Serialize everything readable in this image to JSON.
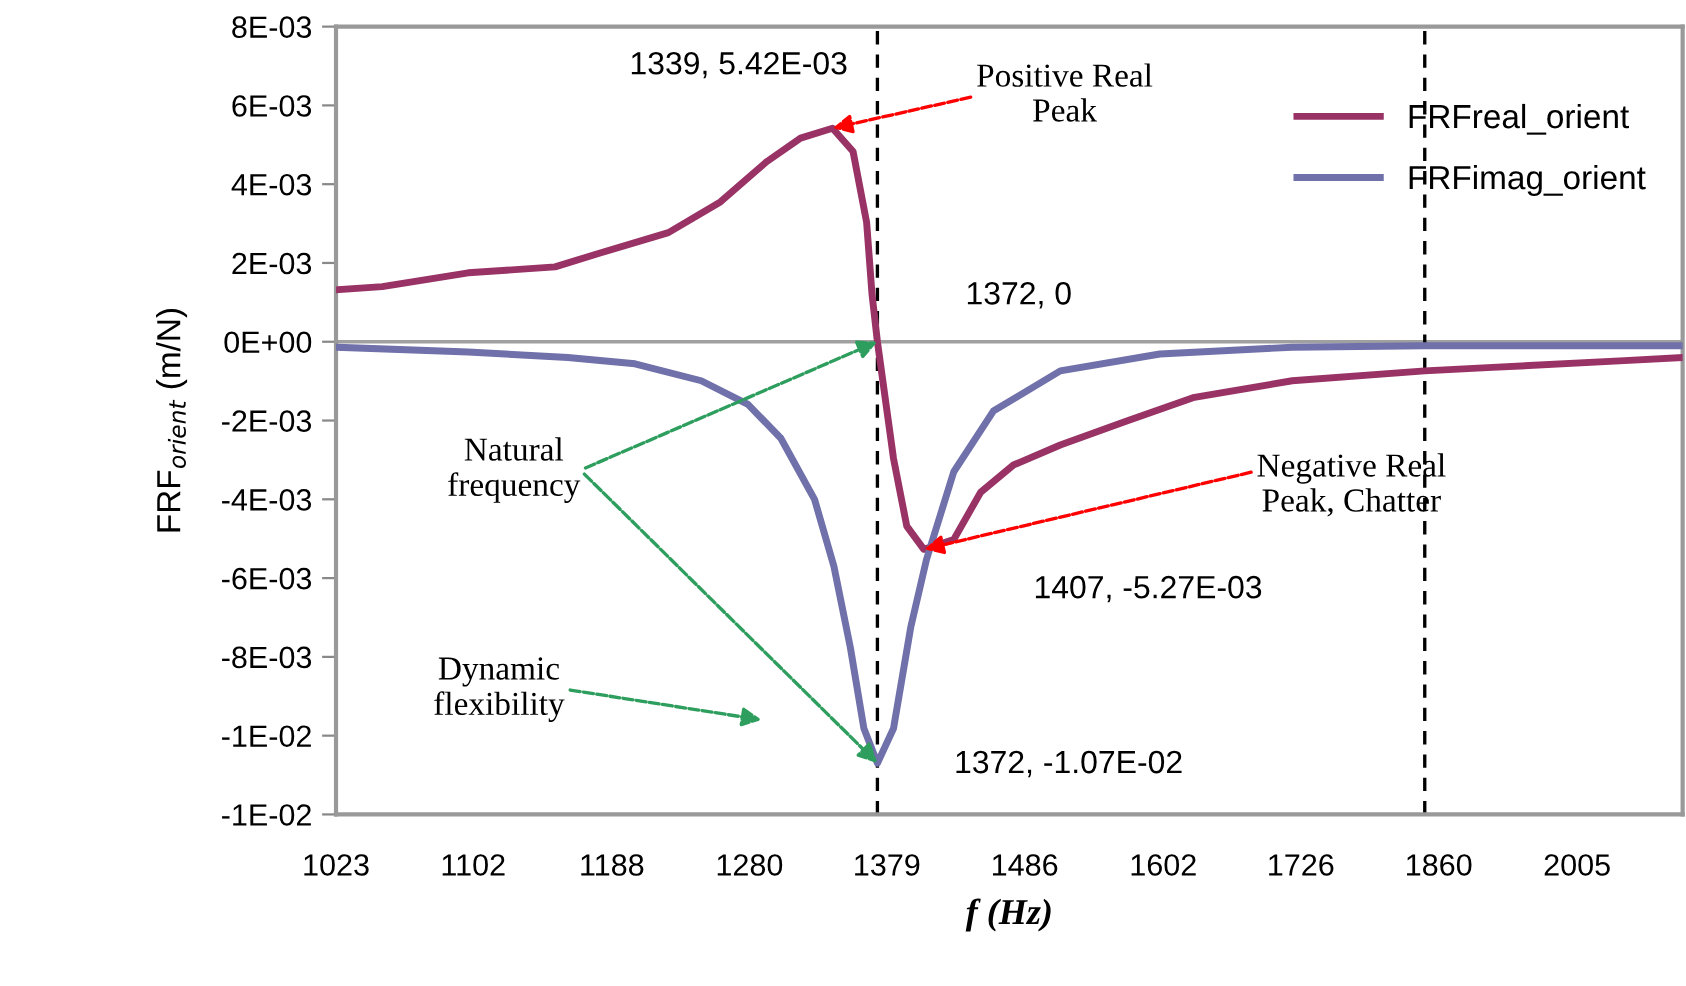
{
  "chart_data": {
    "type": "line",
    "xlabel": "f (Hz)",
    "ylabel": "FRF$_{orient}$ (m/N)",
    "log": "x",
    "xlim": [
      1023,
      2123
    ],
    "xticks": [
      1023,
      1102,
      1188,
      1280,
      1379,
      1486,
      1602,
      1726,
      1860,
      2005
    ],
    "ylim": [
      -0.012,
      0.008
    ],
    "yticks": [
      {
        "value": 0.008,
        "label": "8E-03"
      },
      {
        "value": 0.006,
        "label": "6E-03"
      },
      {
        "value": 0.004,
        "label": "4E-03"
      },
      {
        "value": 0.002,
        "label": "2E-03"
      },
      {
        "value": 0,
        "label": "0E+00"
      },
      {
        "value": -0.002,
        "label": "-2E-03"
      },
      {
        "value": -0.004,
        "label": "-4E-03"
      },
      {
        "value": -0.006,
        "label": "-6E-03"
      },
      {
        "value": -0.008,
        "label": "-8E-03"
      },
      {
        "value": -0.01,
        "label": "-1E-02"
      },
      {
        "value": -0.012,
        "label": "-1E-02"
      }
    ],
    "grid": false,
    "legend": "top right",
    "marker": "none",
    "line_style": "solid",
    "series": [
      {
        "name": "FRFreal_orient",
        "color": "#993366",
        "x": [
          1024,
          1049,
          1099,
          1152,
          1181,
          1225,
          1260,
          1292,
          1316,
          1339,
          1354,
          1364,
          1368,
          1372,
          1384,
          1394,
          1407,
          1430,
          1451,
          1477,
          1515,
          1570,
          1628,
          1718,
          1846,
          1915,
          2057,
          2123
        ],
        "values": [
          0.00132,
          0.0014,
          0.00175,
          0.0019,
          0.00226,
          0.00277,
          0.00355,
          0.00457,
          0.00517,
          0.00542,
          0.00483,
          0.00303,
          0.0012,
          0,
          -0.00296,
          -0.00468,
          -0.00527,
          -0.00502,
          -0.00382,
          -0.00313,
          -0.00262,
          -0.00202,
          -0.00142,
          -0.00099,
          -0.00074,
          -0.00065,
          -0.00048,
          -0.0004
        ]
      },
      {
        "name": "FRFimag_orient",
        "color": "#7070aa",
        "x": [
          1024,
          1099,
          1160,
          1203,
          1247,
          1279,
          1302,
          1326,
          1340,
          1352,
          1362,
          1372,
          1384,
          1397,
          1409,
          1430,
          1461,
          1515,
          1599,
          1718,
          1846,
          2123
        ],
        "values": [
          -0.00014,
          -0.00026,
          -0.0004,
          -0.00056,
          -0.00099,
          -0.00159,
          -0.00245,
          -0.004,
          -0.0057,
          -0.00776,
          -0.00982,
          -0.0107,
          -0.00982,
          -0.00725,
          -0.00553,
          -0.0033,
          -0.00176,
          -0.00074,
          -0.00031,
          -0.00014,
          -0.0001,
          -0.0001
        ]
      }
    ],
    "ref_lines": [
      {
        "axis": "y",
        "value": 0,
        "color": "#a0a0a0",
        "line_style": "solid"
      },
      {
        "axis": "x",
        "value": 1372,
        "color": "#000000",
        "line_style": "dashed"
      },
      {
        "axis": "x",
        "value": 1846,
        "color": "#000000",
        "line_style": "dashed"
      }
    ],
    "annotations": [
      "1339, 5.42E-03",
      {
        "text": "Positive Real\nPeak",
        "x": 1339,
        "y": 0.00542
      },
      "1372, 0",
      {
        "text": "Natural\nfrequency",
        "x": 1372,
        "y": 0
      },
      {
        "text": "Negative Real\nPeak, Chatter",
        "x": 1407,
        "y": -0.00527
      },
      "1407, -5.27E-03",
      "Dynamic\nflexibility",
      "1372, -1.07E-02"
    ]
  }
}
